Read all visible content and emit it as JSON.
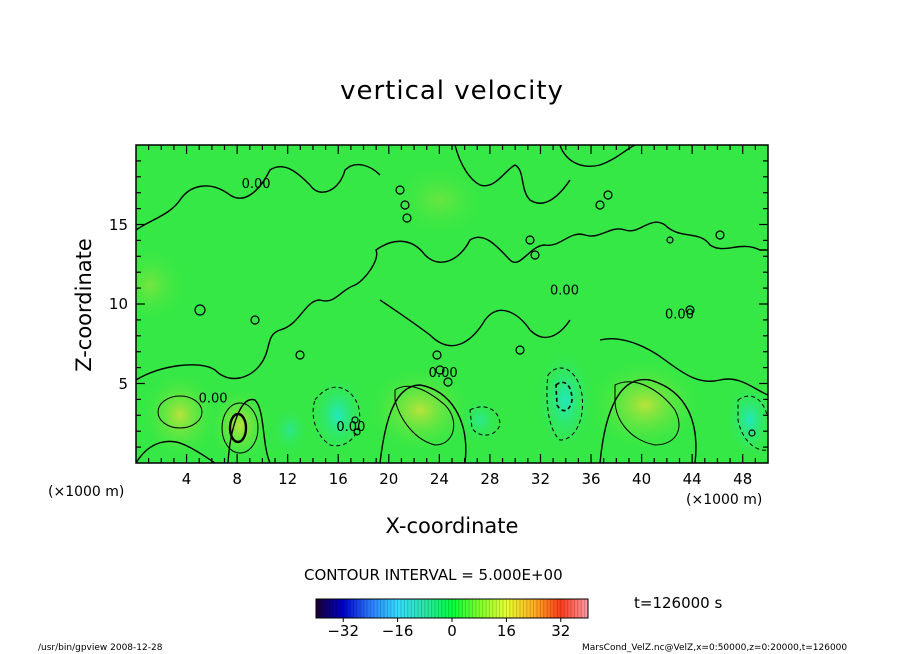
{
  "chart_data": {
    "type": "heatmap",
    "title": "vertical velocity",
    "xlabel": "X-coordinate",
    "ylabel": "Z-coordinate",
    "x_unit_left": "(×1000 m)",
    "x_unit_right": "(×1000 m)",
    "xlim": [
      0,
      50
    ],
    "ylim": [
      0,
      20
    ],
    "x_ticks": [
      "4",
      "8",
      "12",
      "16",
      "20",
      "24",
      "28",
      "32",
      "36",
      "40",
      "44",
      "48"
    ],
    "x_tick_values": [
      4,
      8,
      12,
      16,
      20,
      24,
      28,
      32,
      36,
      40,
      44,
      48
    ],
    "y_ticks": [
      "5",
      "10",
      "15"
    ],
    "y_tick_values": [
      5,
      10,
      15
    ],
    "contour_labels": [
      {
        "text": "0.00",
        "x": 9.5,
        "z": 17.3
      },
      {
        "text": "0.00",
        "x": 6.1,
        "z": 3.8
      },
      {
        "text": "0.00",
        "x": 17.0,
        "z": 2.0
      },
      {
        "text": "0.00",
        "x": 24.3,
        "z": 5.4
      },
      {
        "text": "0.00",
        "x": 33.9,
        "z": 10.6
      },
      {
        "text": "0.00",
        "x": 43.0,
        "z": 9.1
      }
    ],
    "colorbar": {
      "range": [
        -40,
        40
      ],
      "ticks": [
        "−32",
        "−16",
        "0",
        "16",
        "32"
      ],
      "tick_values": [
        -32,
        -16,
        0,
        16,
        32
      ],
      "colors": [
        "#1a0033",
        "#0000c8",
        "#2b7bff",
        "#33ddff",
        "#2be6a8",
        "#00ff3c",
        "#7dff2b",
        "#e8ff30",
        "#ffb020",
        "#ff3a1a",
        "#ff9aa8"
      ]
    },
    "contour_interval": "CONTOUR INTERVAL = 5.000E+00",
    "time_label": "t=126000 s",
    "field_colors": {
      "background": "#35e845",
      "updraft": "#a8e83a",
      "downdraft": "#2ee8b0"
    }
  },
  "footer": {
    "left": "/usr/bin/gpview  2008-12-28",
    "right": "MarsCond_VelZ.nc@VelZ,x=0:50000,z=0:20000,t=126000"
  }
}
